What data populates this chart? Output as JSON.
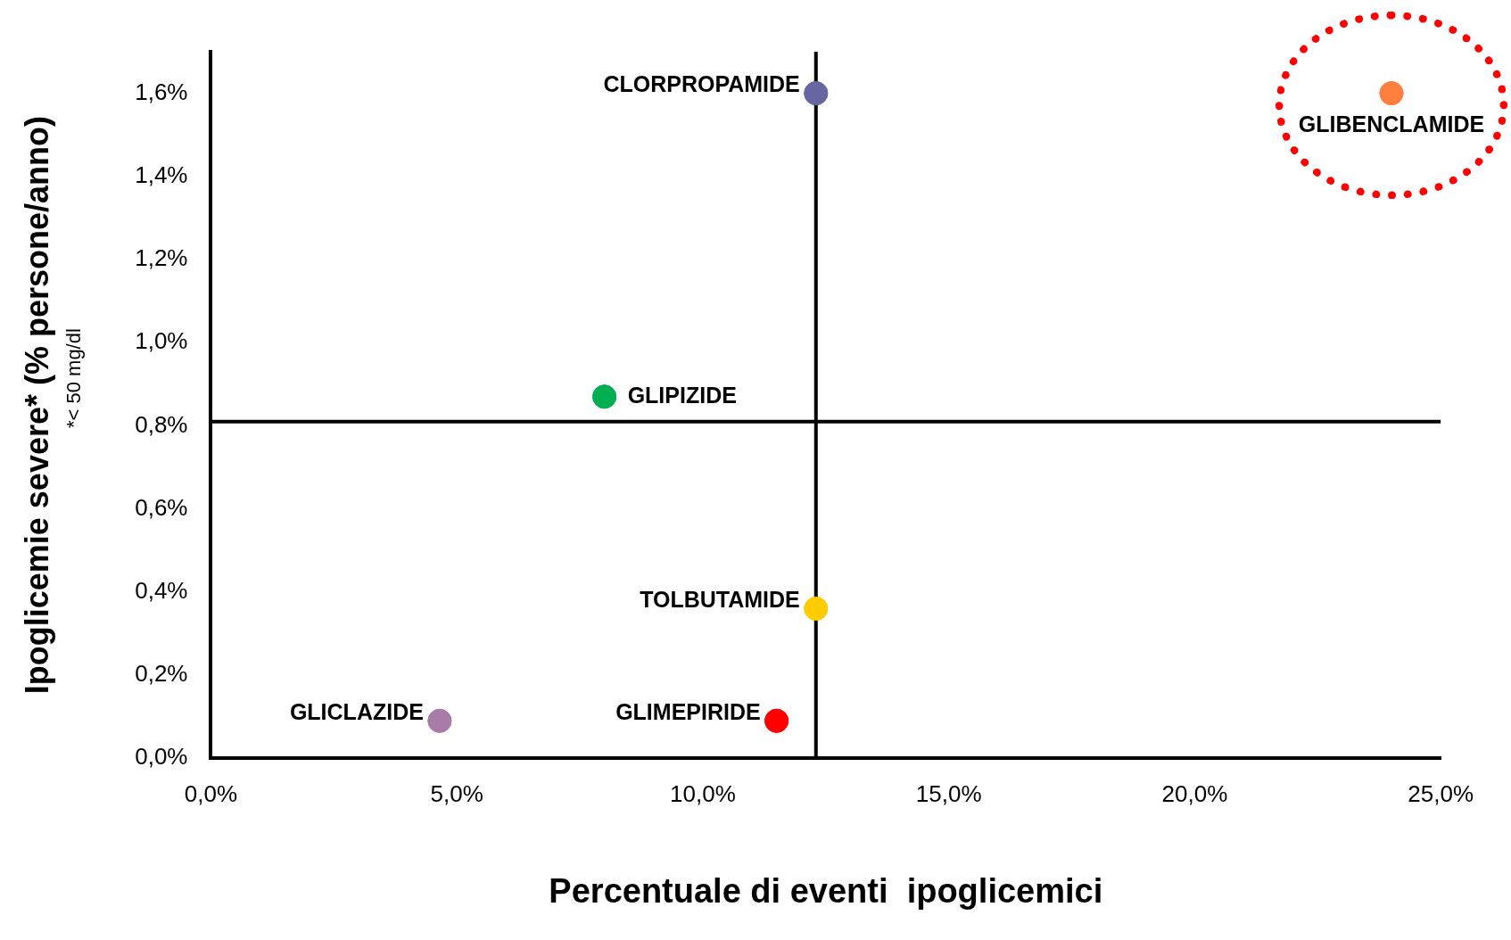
{
  "chart_data": {
    "type": "scatter",
    "xlabel": "Percentuale di eventi  ipoglicemici",
    "ylabel": "Ipoglicemie severe* (% persone/anno)",
    "annotations": [
      "*< 50 mg/dl"
    ],
    "series": [
      {
        "name": "CLORPROPAMIDE",
        "color": "#6667a0",
        "x": [
          12.3
        ],
        "values": [
          1.6
        ]
      },
      {
        "name": "GLIBENCLAMIDE",
        "color": "#ff7f3f",
        "x": [
          24.0
        ],
        "values": [
          1.6
        ]
      },
      {
        "name": "GLIPIZIDE",
        "color": "#00b050",
        "x": [
          8.0
        ],
        "values": [
          0.87
        ]
      },
      {
        "name": "TOLBUTAMIDE",
        "color": "#ffcc00",
        "x": [
          12.3
        ],
        "values": [
          0.36
        ]
      },
      {
        "name": "GLICLAZIDE",
        "color": "#a87ca8",
        "x": [
          4.65
        ],
        "values": [
          0.09
        ]
      },
      {
        "name": "GLIMEPIRIDE",
        "color": "#ff0000",
        "x": [
          11.5
        ],
        "values": [
          0.09
        ]
      }
    ],
    "xlim": [
      0,
      25
    ],
    "xticks": [
      {
        "value": 0,
        "label": "0,0%"
      },
      {
        "value": 5,
        "label": "5,0%"
      },
      {
        "value": 10,
        "label": "10,0%"
      },
      {
        "value": 15,
        "label": "15,0%"
      },
      {
        "value": 20,
        "label": "20,0%"
      },
      {
        "value": 25,
        "label": "25,0%"
      }
    ],
    "ylim": [
      0,
      1.7
    ],
    "yticks": [
      {
        "value": 0,
        "label": "0,0%"
      },
      {
        "value": 0.2,
        "label": "0,2%"
      },
      {
        "value": 0.4,
        "label": "0,4%"
      },
      {
        "value": 0.6,
        "label": "0,6%"
      },
      {
        "value": 0.8,
        "label": "0,8%"
      },
      {
        "value": 1.0,
        "label": "1,0%"
      },
      {
        "value": 1.2,
        "label": "1,2%"
      },
      {
        "value": 1.4,
        "label": "1,4%"
      },
      {
        "value": 1.6,
        "label": "1,6%"
      }
    ],
    "ref_lines": [
      {
        "axis": "x",
        "value": 12.3,
        "color": "#000000"
      },
      {
        "axis": "y",
        "value": 0.81,
        "color": "#000000"
      }
    ],
    "grid": false,
    "legend": false,
    "marker": "circle"
  }
}
